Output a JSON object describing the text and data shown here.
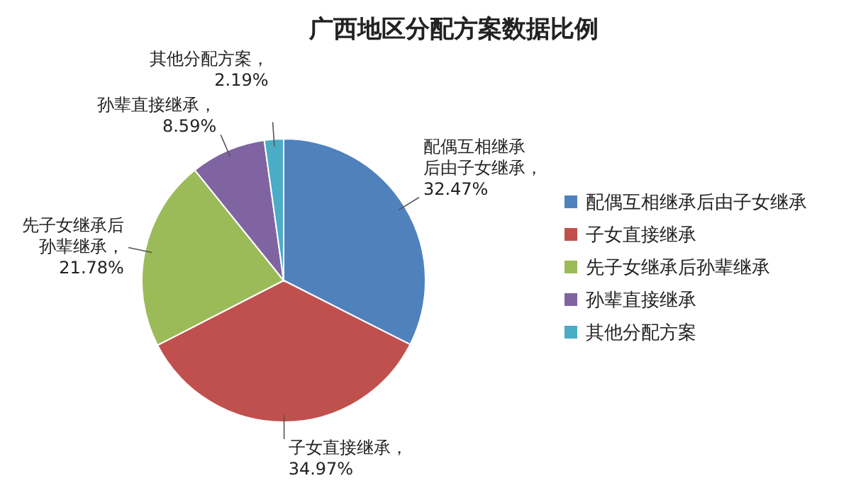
{
  "chart_data": {
    "type": "pie",
    "title": "广西地区分配方案数据比例",
    "categories": [
      "配偶互相继承后由子女继承",
      "子女直接继承",
      "先子女继承后孙辈继承",
      "孙辈直接继承",
      "其他分配方案"
    ],
    "values": [
      32.47,
      34.97,
      21.78,
      8.59,
      2.19
    ],
    "colors": [
      "#4f81bd",
      "#c0504d",
      "#9bbb59",
      "#8064a2",
      "#4bacc6"
    ],
    "value_labels": [
      "配偶互相继承后由子女继承，32.47%",
      "子女直接继承，34.97%",
      "先子女继承后孙辈继承，21.78%",
      "孙辈直接继承，8.59%",
      "其他分配方案，2.19%"
    ],
    "legend": "right"
  }
}
